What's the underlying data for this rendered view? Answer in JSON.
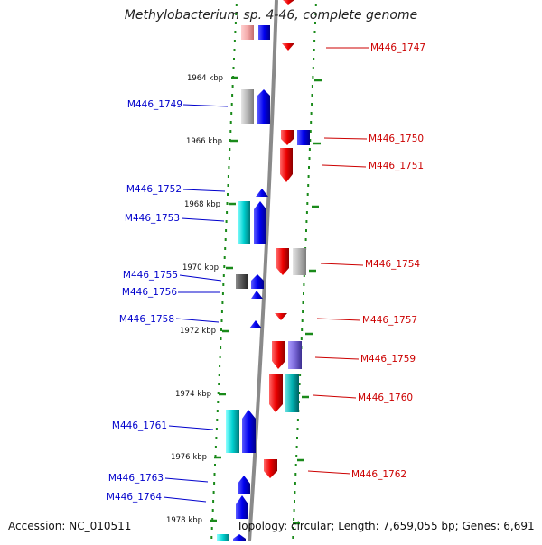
{
  "title": "Methylobacterium sp. 4-46, complete genome",
  "footer": {
    "accession": "Accession: NC_010511",
    "summary": "Topology: circular; Length: 7,659,055 bp; Genes: 6,691"
  },
  "ticks": [
    "1964 kbp",
    "1966 kbp",
    "1968 kbp",
    "1970 kbp",
    "1972 kbp",
    "1974 kbp",
    "1976 kbp",
    "1978 kbp"
  ],
  "genes_left": [
    "M446_1749",
    "M446_1752",
    "M446_1753",
    "M446_1755",
    "M446_1756",
    "M446_1758",
    "M446_1761",
    "M446_1763",
    "M446_1764"
  ],
  "genes_right": [
    "M446_1747",
    "M446_1750",
    "M446_1751",
    "M446_1754",
    "M446_1757",
    "M446_1759",
    "M446_1760",
    "M446_1762"
  ],
  "colors": {
    "forward": "#0000ee",
    "reverse": "#ee0000",
    "grey": "#b0b0b0",
    "cyan": "#00cccc",
    "purple": "#7a68d8",
    "axis": "#8a8a8a",
    "dots": "#1a8a1a"
  }
}
